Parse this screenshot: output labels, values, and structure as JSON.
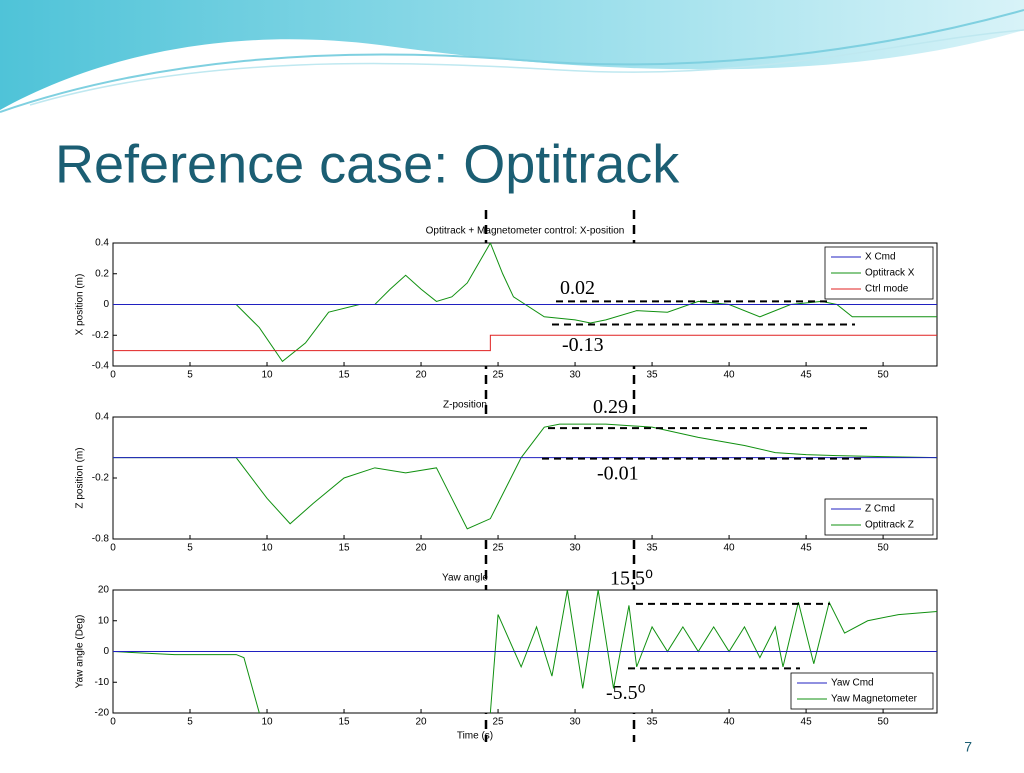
{
  "slide": {
    "title": "Reference case: Optitrack",
    "page_number": "7"
  },
  "chart_data": [
    {
      "type": "line",
      "title": "Optitrack + Magnetometer control: X-position",
      "ylabel": "X  position (m)",
      "xlim": [
        0,
        53.5
      ],
      "xticks": [
        0,
        5,
        10,
        15,
        20,
        25,
        30,
        35,
        40,
        45,
        50
      ],
      "ylim": [
        -0.4,
        0.4
      ],
      "yticks": [
        -0.4,
        -0.2,
        0,
        0.2,
        0.4
      ],
      "legend": "upper right",
      "series": [
        {
          "name": "X Cmd",
          "color": "#2020c0",
          "x": [
            0,
            53.5
          ],
          "values": [
            0,
            0
          ]
        },
        {
          "name": "Optitrack X",
          "color": "#109010",
          "x": [
            0,
            8,
            9.5,
            11,
            12.5,
            14,
            16,
            17,
            18,
            19,
            20,
            21,
            22,
            23,
            24.5,
            25.3,
            26,
            28,
            30,
            31,
            32,
            34,
            36,
            38,
            40,
            42,
            44,
            46,
            47,
            48,
            53.5
          ],
          "values": [
            0,
            0,
            -0.15,
            -0.37,
            -0.25,
            -0.05,
            0,
            0,
            0.1,
            0.19,
            0.1,
            0.02,
            0.05,
            0.14,
            0.4,
            0.2,
            0.05,
            -0.08,
            -0.1,
            -0.12,
            -0.1,
            -0.04,
            -0.05,
            0.02,
            0,
            -0.08,
            0,
            0.02,
            0,
            -0.08,
            -0.08
          ]
        },
        {
          "name": "Ctrl mode",
          "color": "#e02020",
          "x": [
            0,
            24.5,
            24.5,
            53.5
          ],
          "values": [
            -0.3,
            -0.3,
            -0.2,
            -0.2
          ]
        }
      ],
      "hlines": [
        0.02,
        -0.13
      ]
    },
    {
      "type": "line",
      "title": "Z-position",
      "ylabel": "Z position (m)",
      "xlim": [
        0,
        53.5
      ],
      "xticks": [
        0,
        5,
        10,
        15,
        20,
        25,
        30,
        35,
        40,
        45,
        50
      ],
      "ylim": [
        -0.8,
        0.4
      ],
      "yticks": [
        -0.8,
        -0.2,
        0.4
      ],
      "legend": "lower right",
      "series": [
        {
          "name": "Z Cmd",
          "color": "#2020c0",
          "x": [
            0,
            53.5
          ],
          "values": [
            0,
            0
          ]
        },
        {
          "name": "Optitrack Z",
          "color": "#109010",
          "x": [
            0,
            8,
            10,
            11.5,
            13,
            15,
            17,
            19,
            21,
            22,
            23,
            24.5,
            26.5,
            28,
            29,
            32,
            35,
            38,
            41,
            43,
            45,
            47,
            50,
            53.5
          ],
          "values": [
            0,
            0,
            -0.4,
            -0.65,
            -0.45,
            -0.2,
            -0.1,
            -0.15,
            -0.1,
            -0.4,
            -0.7,
            -0.6,
            0,
            0.3,
            0.33,
            0.33,
            0.3,
            0.2,
            0.12,
            0.05,
            0.03,
            0.02,
            0.01,
            0
          ]
        }
      ],
      "hlines": [
        0.29,
        -0.01
      ]
    },
    {
      "type": "line",
      "title": "Yaw angle",
      "ylabel": "Yaw angle (Deg)",
      "xlabel": "Time (s)",
      "xlim": [
        0,
        53.5
      ],
      "xticks": [
        0,
        5,
        10,
        15,
        20,
        25,
        30,
        35,
        40,
        45,
        50
      ],
      "ylim": [
        -20,
        20
      ],
      "yticks": [
        -20,
        -10,
        0,
        10,
        20
      ],
      "legend": "lower right",
      "series": [
        {
          "name": "Yaw Cmd",
          "color": "#2020c0",
          "x": [
            0,
            53.5
          ],
          "values": [
            0,
            0
          ]
        },
        {
          "name": "Yaw Magnetometer",
          "color": "#109010",
          "x": [
            0,
            4,
            8,
            8.5,
            9.5,
            20,
            24.5,
            25,
            26.5,
            27.5,
            28.5,
            29.5,
            30.5,
            31.5,
            32.5,
            33.5,
            34,
            35,
            36,
            37,
            38,
            39,
            40,
            41,
            42,
            43,
            43.5,
            44.5,
            45.5,
            46.5,
            47.5,
            49,
            51,
            53.5
          ],
          "values": [
            0,
            -1,
            -1,
            -2,
            -20,
            null,
            -20,
            12,
            -5,
            8,
            -8,
            20,
            -12,
            20,
            -12,
            15,
            -5,
            8,
            0,
            8,
            0,
            8,
            0,
            8,
            -2,
            8,
            -5,
            16,
            -4,
            16,
            6,
            10,
            12,
            13
          ]
        }
      ],
      "hlines": [
        {
          "value": 15.5,
          "label": "15.5⁰"
        },
        {
          "value": -5.5,
          "label": "-5.5⁰"
        }
      ]
    }
  ]
}
